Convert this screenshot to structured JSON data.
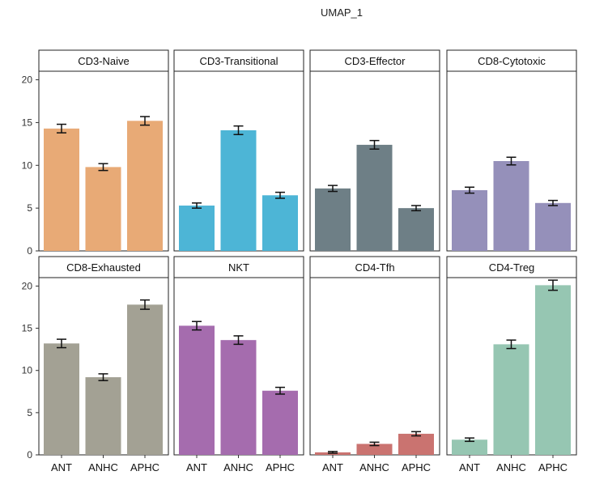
{
  "chart_data": {
    "type": "bar",
    "title": "UMAP_1",
    "xlabel": "",
    "ylabel": "",
    "ylim": [
      0,
      21
    ],
    "yticks": [
      0,
      5,
      10,
      15,
      20
    ],
    "grid": false,
    "categories": [
      "ANT",
      "ANHC",
      "APHC"
    ],
    "panels": [
      {
        "name": "CD3-Naive",
        "color": "#E8AA76",
        "values": [
          14.3,
          9.8,
          15.2
        ],
        "errors": [
          0.5,
          0.4,
          0.5
        ]
      },
      {
        "name": "CD3-Transitional",
        "color": "#4DB5D6",
        "values": [
          5.3,
          14.1,
          6.5
        ],
        "errors": [
          0.3,
          0.5,
          0.35
        ]
      },
      {
        "name": "CD3-Effector",
        "color": "#6E7F86",
        "values": [
          7.3,
          12.4,
          5.0
        ],
        "errors": [
          0.35,
          0.5,
          0.3
        ]
      },
      {
        "name": "CD8-Cytotoxic",
        "color": "#9590BA",
        "values": [
          7.1,
          10.5,
          5.6
        ],
        "errors": [
          0.35,
          0.45,
          0.3
        ]
      },
      {
        "name": "CD8-Exhausted",
        "color": "#A3A194",
        "values": [
          13.2,
          9.2,
          17.8
        ],
        "errors": [
          0.5,
          0.4,
          0.55
        ]
      },
      {
        "name": "NKT",
        "color": "#A56CAE",
        "values": [
          15.3,
          13.6,
          7.6
        ],
        "errors": [
          0.5,
          0.5,
          0.4
        ]
      },
      {
        "name": "CD4-Tfh",
        "color": "#CA7370",
        "values": [
          0.3,
          1.3,
          2.5
        ],
        "errors": [
          0.1,
          0.2,
          0.25
        ]
      },
      {
        "name": "CD4-Treg",
        "color": "#96C6B2",
        "values": [
          1.8,
          13.1,
          20.1
        ],
        "errors": [
          0.2,
          0.5,
          0.6
        ]
      }
    ]
  }
}
